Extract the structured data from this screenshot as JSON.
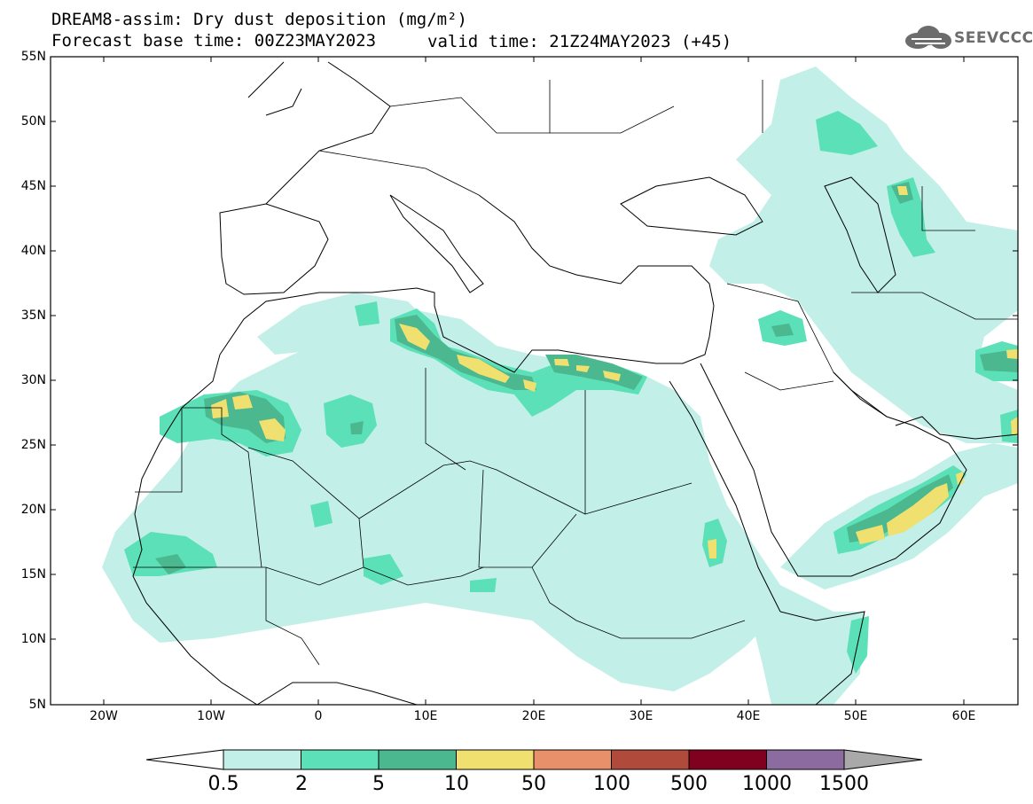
{
  "header": {
    "title_line1": "DREAM8-assim: Dry dust deposition (mg/m²)",
    "title_line2": "Forecast base time: 00Z23MAY2023",
    "valid_time": "valid time: 21Z24MAY2023 (+45)"
  },
  "logo": {
    "text": "SEEVCCC",
    "icon": "cloud-icon"
  },
  "map": {
    "lat_labels": [
      "55N",
      "50N",
      "45N",
      "40N",
      "35N",
      "30N",
      "25N",
      "20N",
      "15N",
      "10N",
      "5N"
    ],
    "lon_labels": [
      "20W",
      "10W",
      "0",
      "10E",
      "20E",
      "30E",
      "40E",
      "50E",
      "60E"
    ],
    "lat_range": [
      5,
      55
    ],
    "lon_range": [
      -25,
      65
    ]
  },
  "colorbar": {
    "labels": [
      "0.5",
      "2",
      "5",
      "10",
      "50",
      "100",
      "500",
      "1000",
      "1500"
    ],
    "colors": [
      "#c2f0e8",
      "#5ce0b8",
      "#4bb88f",
      "#f0e070",
      "#e8906a",
      "#b04b3c",
      "#800020",
      "#8c6ba0",
      "#a9a9a9"
    ],
    "under_color": "#ffffff",
    "over_color": "#a9a9a9"
  }
}
